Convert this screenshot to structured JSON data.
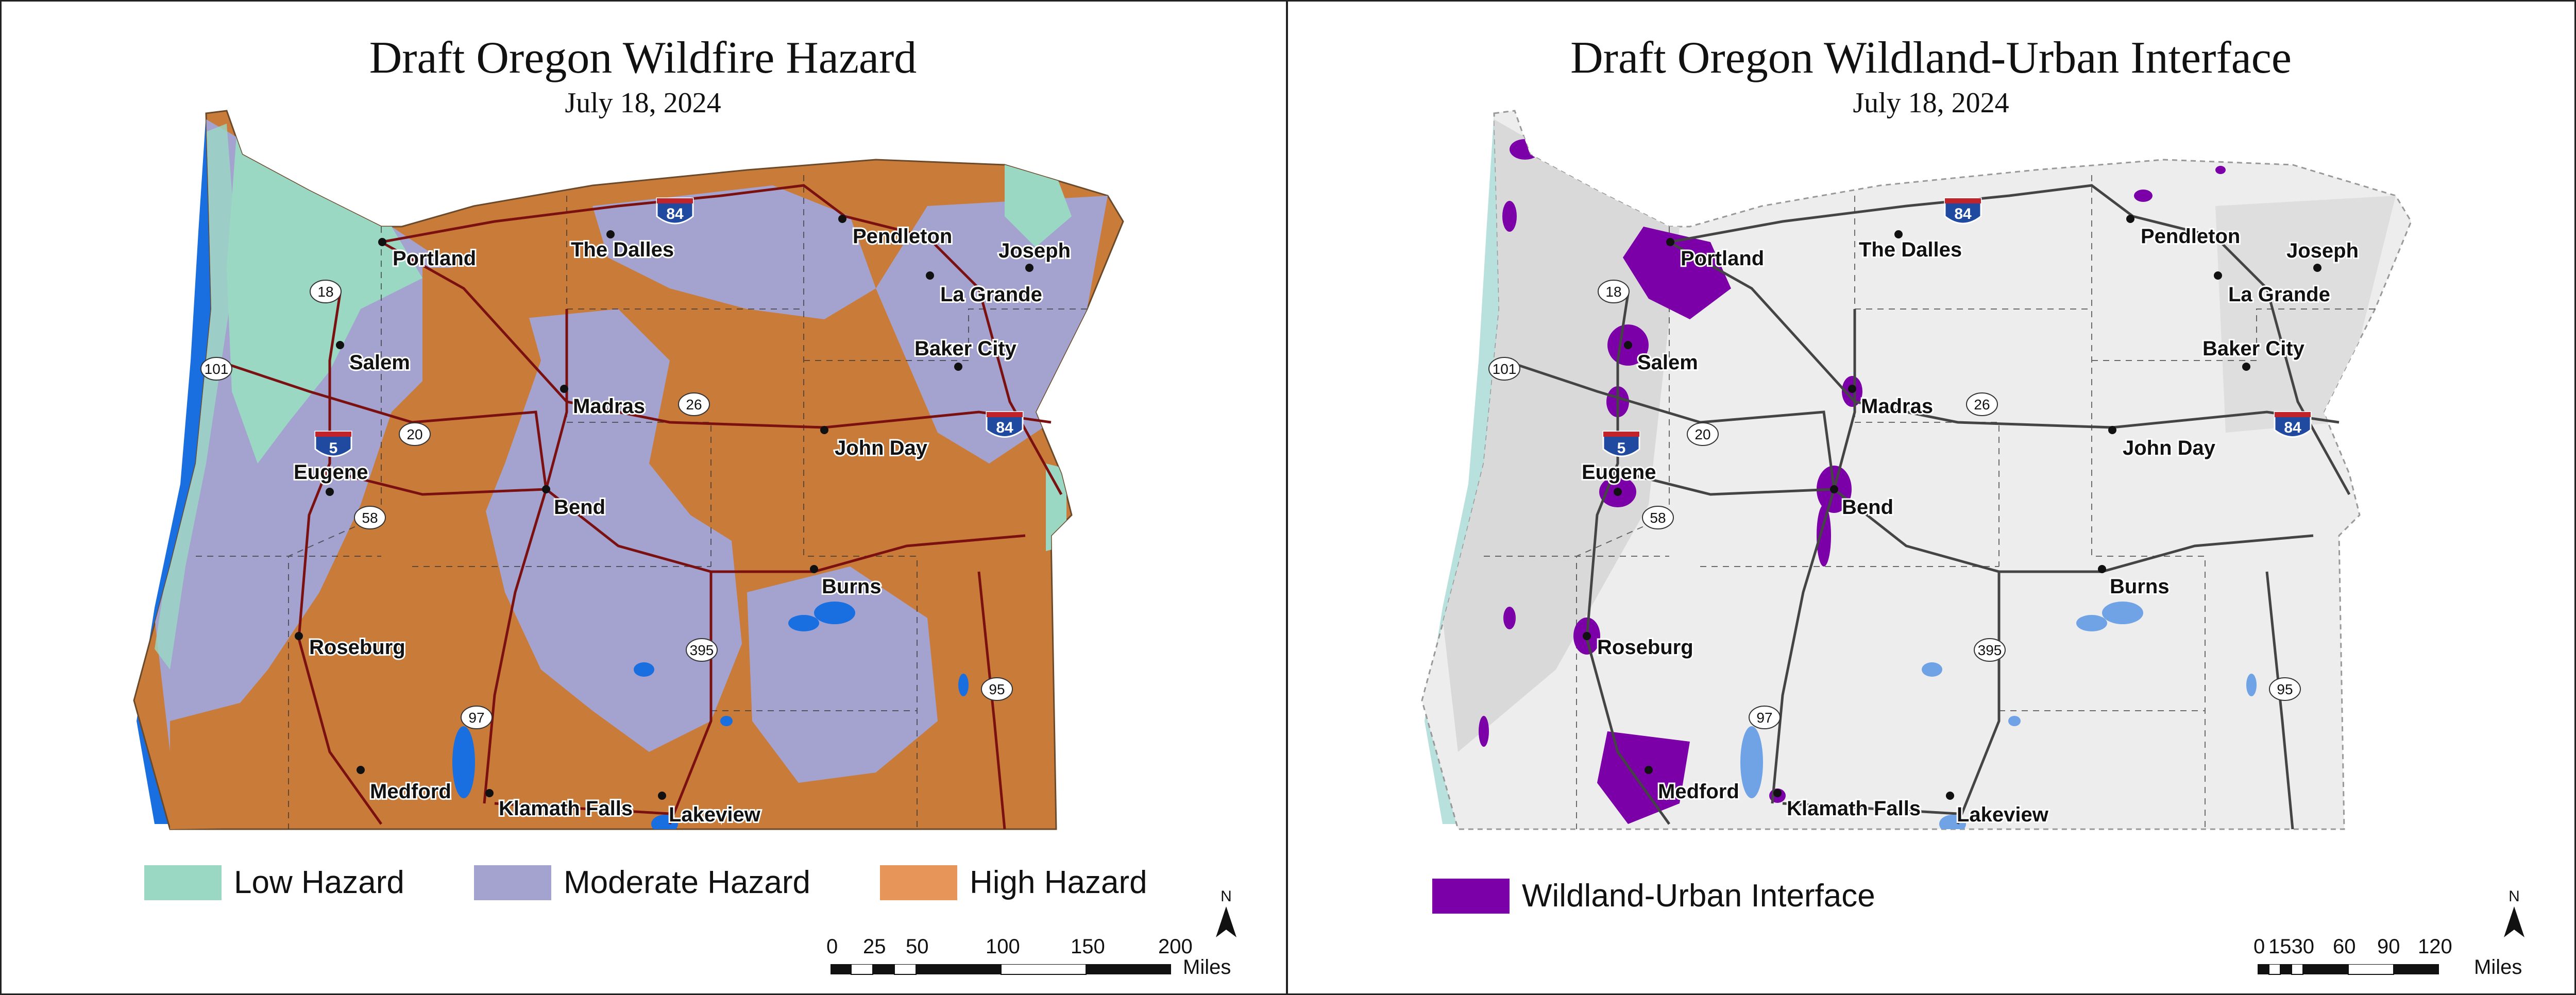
{
  "left_panel": {
    "title": "Draft Oregon Wildfire Hazard",
    "date": "July 18, 2024",
    "legend": [
      {
        "label": "Low Hazard",
        "color": "#9ad8c4"
      },
      {
        "label": "Moderate Hazard",
        "color": "#a4a3cf"
      },
      {
        "label": "High Hazard",
        "color": "#e8955a"
      }
    ],
    "scale": {
      "ticks": [
        "0",
        "25",
        "50",
        "100",
        "150",
        "200"
      ],
      "unit": "Miles"
    },
    "north_label": "N"
  },
  "right_panel": {
    "title": "Draft Oregon Wildland-Urban Interface",
    "date": "July 18, 2024",
    "legend": [
      {
        "label": "Wildland-Urban Interface",
        "color": "#7b00a8"
      }
    ],
    "scale": {
      "ticks": [
        "0",
        "1530",
        "60",
        "90",
        "120"
      ],
      "unit": "Miles"
    },
    "north_label": "N"
  },
  "cities": [
    "Portland",
    "The Dalles",
    "Pendleton",
    "Joseph",
    "La Grande",
    "Baker City",
    "Salem",
    "Madras",
    "John Day",
    "Eugene",
    "Bend",
    "Burns",
    "Roseburg",
    "Medford",
    "Klamath Falls",
    "Lakeview"
  ],
  "highways": {
    "interstate_84": "84",
    "interstate_5": "5",
    "us_18": "18",
    "us_101": "101",
    "us_20": "20",
    "us_26": "26",
    "us_58": "58",
    "us_97": "97",
    "us_395": "395",
    "us_95": "95"
  },
  "colors": {
    "ocean_edge": "#1a6fe0",
    "water": "#3a7ee0",
    "roads": "#7a1010",
    "roads_right": "#444444",
    "wui": "#7b00a8",
    "relief_bg": "#ededed",
    "interstate_shield": "#1f4aa0",
    "interstate_top": "#c0232a"
  }
}
